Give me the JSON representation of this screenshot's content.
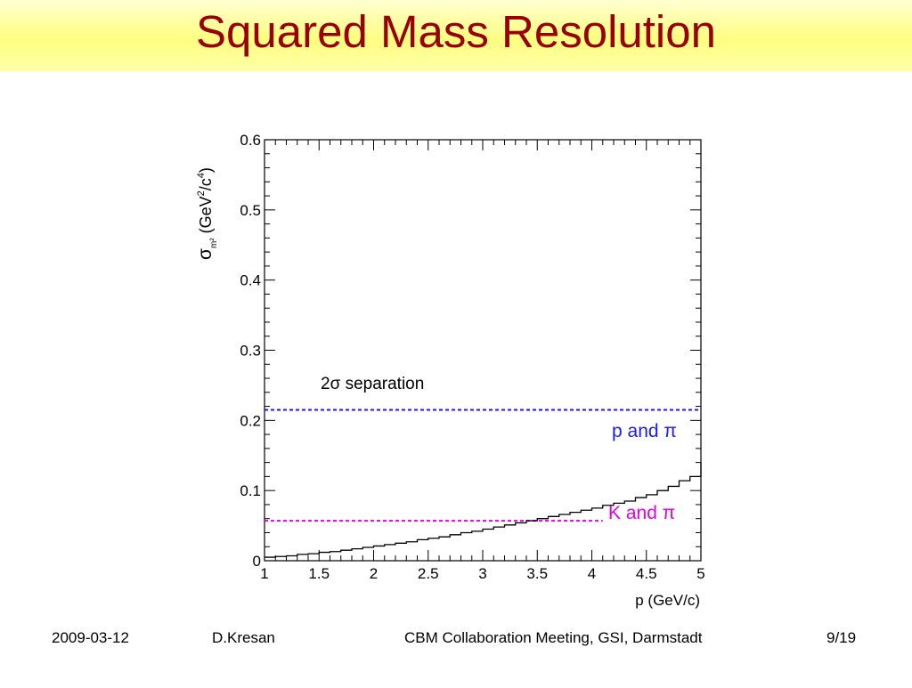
{
  "slide": {
    "title": "Squared Mass Resolution"
  },
  "footer": {
    "date": "2009-03-12",
    "author": "D.Kresan",
    "event": "CBM Collaboration Meeting, GSI, Darmstadt",
    "page": "9/19"
  },
  "colors": {
    "title": "#990000",
    "title_band": "#ffff80",
    "histogram": "#000000",
    "p_pi_line": "#1a1aff",
    "k_pi_line": "#e600e6"
  },
  "chart_data": {
    "type": "line",
    "step": true,
    "x": [
      1.0,
      1.1,
      1.2,
      1.3,
      1.4,
      1.5,
      1.6,
      1.7,
      1.8,
      1.9,
      2.0,
      2.1,
      2.2,
      2.3,
      2.4,
      2.5,
      2.6,
      2.7,
      2.8,
      2.9,
      3.0,
      3.1,
      3.2,
      3.3,
      3.4,
      3.5,
      3.6,
      3.7,
      3.8,
      3.9,
      4.0,
      4.1,
      4.2,
      4.3,
      4.4,
      4.5,
      4.6,
      4.7,
      4.8,
      4.9
    ],
    "y": [
      0.005,
      0.006,
      0.007,
      0.009,
      0.01,
      0.012,
      0.013,
      0.015,
      0.017,
      0.019,
      0.021,
      0.023,
      0.025,
      0.027,
      0.03,
      0.032,
      0.034,
      0.037,
      0.04,
      0.042,
      0.045,
      0.048,
      0.051,
      0.054,
      0.057,
      0.06,
      0.063,
      0.066,
      0.069,
      0.072,
      0.075,
      0.079,
      0.082,
      0.085,
      0.09,
      0.094,
      0.1,
      0.106,
      0.114,
      0.12
    ],
    "bin_width": 0.1,
    "y_end": 0.141,
    "xlim": [
      1,
      5
    ],
    "ylim": [
      0,
      0.6
    ],
    "xticks": [
      "1",
      "1.5",
      "2",
      "2.5",
      "3",
      "3.5",
      "4",
      "4.5",
      "5"
    ],
    "yticks": [
      "0",
      "0.1",
      "0.2",
      "0.3",
      "0.4",
      "0.5",
      "0.6"
    ],
    "xlabel": "p (GeV/c)",
    "ylabel": {
      "symbol": "σ",
      "sub": "m²",
      "units": "(GeV",
      "sup1": "2",
      "mid": "/c",
      "sup2": "4",
      "close": ")"
    },
    "reference_lines": [
      {
        "name": "p and π",
        "y": 0.215,
        "x_end": 5.0,
        "color": "#1a1aff"
      },
      {
        "name": "K and π",
        "y": 0.057,
        "x_end": 4.1,
        "color": "#e600e6"
      }
    ],
    "annotation": "2σ separation",
    "grid": false
  }
}
